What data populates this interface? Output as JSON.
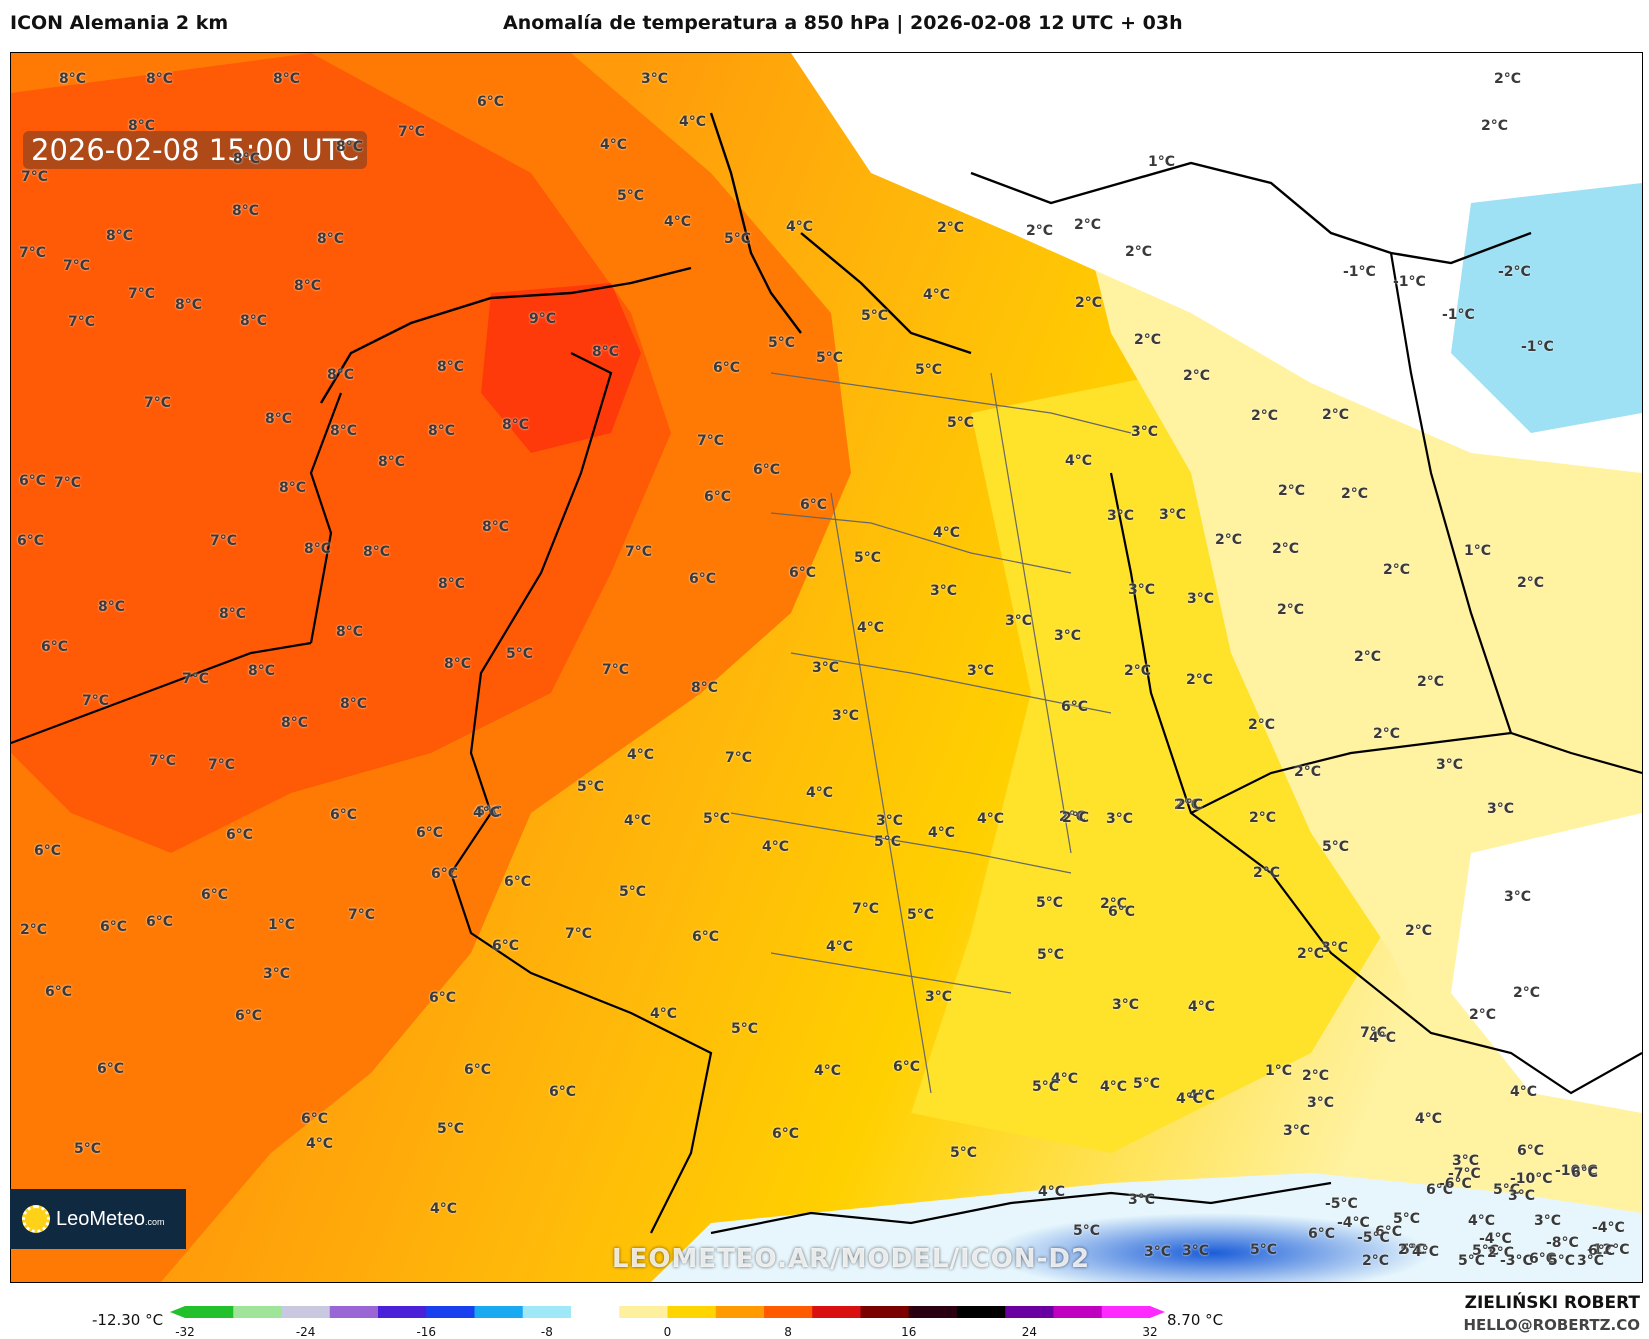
{
  "header": {
    "model": "ICON Alemania 2 km",
    "title": "Anomalía de temperatura a 850 hPa | 2026-02-08 12 UTC + 03h"
  },
  "valid_time": "2026-02-08 15:00 UTC",
  "watermark": "LEOMETEO.AR/MODEL/ICON-D2",
  "logo": {
    "name": "LeoMeteo",
    "suffix": ".com",
    "icon": "sun-logo-icon"
  },
  "colorbar": {
    "min_label": "-12.30 °C",
    "max_label": "8.70 °C",
    "ticks": [
      "-32",
      "-24",
      "-16",
      "-8",
      "0",
      "8",
      "16",
      "24",
      "32"
    ],
    "stops": [
      "#22c02a",
      "#9ee59a",
      "#c8c8e0",
      "#9a66d6",
      "#4a20d8",
      "#1840ee",
      "#1aa8f0",
      "#9ee8f8",
      "#ffffff",
      "#fff0a0",
      "#ffd400",
      "#ff9a00",
      "#ff5a00",
      "#d81010",
      "#7a0000",
      "#2a0010",
      "#000000",
      "#6a00a0",
      "#c000c0",
      "#ff2aff"
    ]
  },
  "author": {
    "name": "ZIELIŃSKI ROBERT",
    "email": "HELLO@ROBERTZ.CO"
  },
  "field_colors": {
    "warm_9": "#ff3a0a",
    "warm_8": "#ff5a05",
    "warm_7": "#ff7a05",
    "warm_6": "#ff9a0a",
    "mid_5": "#ffb80a",
    "mid_4": "#ffd000",
    "mid_3": "#ffe22a",
    "cool_2": "#fff2a0",
    "cool_1": "#fffbe6",
    "zero": "#ffffff",
    "neg_1": "#e6f6fc",
    "neg_2": "#9ee0f4",
    "alps_cold": "#1a5cd8"
  },
  "temperature_labels": [
    {
      "text": "8°C"
    },
    {
      "text": "8°C"
    },
    {
      "text": "8°C"
    },
    {
      "text": "6°C"
    },
    {
      "text": "3°C"
    },
    {
      "text": "2°C"
    },
    {
      "text": "2°C"
    },
    {
      "text": "8°C"
    },
    {
      "text": "7°C"
    },
    {
      "text": "8°C"
    },
    {
      "text": "4°C"
    },
    {
      "text": "4°C"
    },
    {
      "text": "8°C"
    },
    {
      "text": "7°C"
    },
    {
      "text": "8°C"
    },
    {
      "text": "5°C"
    },
    {
      "text": "1°C"
    },
    {
      "text": "2°C"
    },
    {
      "text": "4°C"
    },
    {
      "text": "4°C"
    },
    {
      "text": "5°C"
    },
    {
      "text": "2°C"
    },
    {
      "text": "2°C"
    },
    {
      "text": "2°C"
    },
    {
      "text": "2°C"
    },
    {
      "text": "-1°C"
    },
    {
      "text": "-1°C"
    },
    {
      "text": "-2°C"
    },
    {
      "text": "8°C"
    },
    {
      "text": "7°C"
    },
    {
      "text": "7°C"
    },
    {
      "text": "8°C"
    },
    {
      "text": "7°C"
    },
    {
      "text": "8°C"
    },
    {
      "text": "8°C"
    },
    {
      "text": "9°C"
    },
    {
      "text": "4°C"
    },
    {
      "text": "5°C"
    },
    {
      "text": "-1°C"
    },
    {
      "text": "-1°C"
    },
    {
      "text": "8°C"
    },
    {
      "text": "6°C"
    },
    {
      "text": "5°C"
    },
    {
      "text": "5°C"
    },
    {
      "text": "5°C"
    },
    {
      "text": "2°C"
    },
    {
      "text": "2°C"
    },
    {
      "text": "7°C"
    },
    {
      "text": "8°C"
    },
    {
      "text": "8°C"
    },
    {
      "text": "8°C"
    },
    {
      "text": "8°C"
    },
    {
      "text": "5°C"
    },
    {
      "text": "2°C"
    },
    {
      "text": "7°C"
    },
    {
      "text": "8°C"
    },
    {
      "text": "8°C"
    },
    {
      "text": "3°C"
    },
    {
      "text": "2°C"
    },
    {
      "text": "8°C"
    },
    {
      "text": "7°C"
    },
    {
      "text": "6°C"
    },
    {
      "text": "4°C"
    },
    {
      "text": "6°C"
    },
    {
      "text": "7°C"
    },
    {
      "text": "8°C"
    },
    {
      "text": "6°C"
    },
    {
      "text": "6°C"
    },
    {
      "text": "2°C"
    },
    {
      "text": "2°C"
    },
    {
      "text": "3°C"
    },
    {
      "text": "3°C"
    },
    {
      "text": "2°C"
    },
    {
      "text": "8°C"
    },
    {
      "text": "4°C"
    },
    {
      "text": "2°C"
    },
    {
      "text": "2°C"
    },
    {
      "text": "1°C"
    },
    {
      "text": "6°C"
    },
    {
      "text": "7°C"
    },
    {
      "text": "8°C"
    },
    {
      "text": "8°C"
    },
    {
      "text": "5°C"
    },
    {
      "text": "6°C"
    },
    {
      "text": "7°C"
    },
    {
      "text": "2°C"
    },
    {
      "text": "2°C"
    },
    {
      "text": "3°C"
    },
    {
      "text": "3°C"
    },
    {
      "text": "2°C"
    },
    {
      "text": "8°C"
    },
    {
      "text": "8°C"
    },
    {
      "text": "8°C"
    },
    {
      "text": "6°C"
    },
    {
      "text": "3°C"
    },
    {
      "text": "3°C"
    },
    {
      "text": "3°C"
    },
    {
      "text": "2°C"
    },
    {
      "text": "6°C"
    },
    {
      "text": "7°C"
    },
    {
      "text": "8°C"
    },
    {
      "text": "4°C"
    },
    {
      "text": "3°C"
    },
    {
      "text": "2°C"
    },
    {
      "text": "2°C"
    },
    {
      "text": "2°C"
    },
    {
      "text": "8°C"
    },
    {
      "text": "8°C"
    },
    {
      "text": "8°C"
    },
    {
      "text": "5°C"
    },
    {
      "text": "3°C"
    },
    {
      "text": "7°C"
    },
    {
      "text": "8°C"
    },
    {
      "text": "8°C"
    },
    {
      "text": "6°C"
    },
    {
      "text": "2°C"
    },
    {
      "text": "3°C"
    },
    {
      "text": "3°C"
    },
    {
      "text": "2°C"
    },
    {
      "text": "3°C"
    },
    {
      "text": "8°C"
    },
    {
      "text": "7°C"
    },
    {
      "text": "4°C"
    },
    {
      "text": "2°C"
    },
    {
      "text": "3°C"
    },
    {
      "text": "7°C"
    },
    {
      "text": "7°C"
    },
    {
      "text": "7°C"
    },
    {
      "text": "5°C"
    },
    {
      "text": "6°C"
    },
    {
      "text": "6°C"
    },
    {
      "text": "4°C"
    },
    {
      "text": "5°C"
    },
    {
      "text": "2°C"
    },
    {
      "text": "3°C"
    },
    {
      "text": "5°C"
    },
    {
      "text": "4°C"
    },
    {
      "text": "4°C"
    },
    {
      "text": "2°C"
    },
    {
      "text": "2°C"
    },
    {
      "text": "2°C"
    },
    {
      "text": "6°C"
    },
    {
      "text": "6°C"
    },
    {
      "text": "6°C"
    },
    {
      "text": "6°C"
    },
    {
      "text": "5°C"
    },
    {
      "text": "4°C"
    },
    {
      "text": "5°C"
    },
    {
      "text": "4°C"
    },
    {
      "text": "4°C"
    },
    {
      "text": "2°C"
    },
    {
      "text": "3°C"
    },
    {
      "text": "6°C"
    },
    {
      "text": "6°C"
    },
    {
      "text": "6°C"
    },
    {
      "text": "4°C"
    },
    {
      "text": "2°C"
    },
    {
      "text": "2°C"
    },
    {
      "text": "3°C"
    },
    {
      "text": "7°C"
    },
    {
      "text": "7°C"
    },
    {
      "text": "5°C"
    },
    {
      "text": "5°C"
    },
    {
      "text": "3°C"
    },
    {
      "text": "2°C"
    },
    {
      "text": "1°C"
    },
    {
      "text": "6°C"
    },
    {
      "text": "7°C"
    },
    {
      "text": "6°C"
    },
    {
      "text": "6°C"
    },
    {
      "text": "5°C"
    },
    {
      "text": "2°C"
    },
    {
      "text": "6°C"
    },
    {
      "text": "3°C"
    },
    {
      "text": "3°C"
    },
    {
      "text": "2°C"
    },
    {
      "text": "2°C"
    },
    {
      "text": "7°C"
    },
    {
      "text": "6°C"
    },
    {
      "text": "6°C"
    },
    {
      "text": "6°C"
    },
    {
      "text": "4°C"
    },
    {
      "text": "5°C"
    },
    {
      "text": "4°C"
    },
    {
      "text": "4°C"
    },
    {
      "text": "1°C"
    },
    {
      "text": "6°C"
    },
    {
      "text": "6°C"
    },
    {
      "text": "6°C"
    },
    {
      "text": "4°C"
    },
    {
      "text": "4°C"
    },
    {
      "text": "2°C"
    },
    {
      "text": "6°C"
    },
    {
      "text": "5°C"
    },
    {
      "text": "5°C"
    },
    {
      "text": "4°C"
    },
    {
      "text": "3°C"
    },
    {
      "text": "4°C"
    },
    {
      "text": "4°C"
    },
    {
      "text": "4°C"
    },
    {
      "text": "3°C"
    },
    {
      "text": "6°C"
    },
    {
      "text": "5°C"
    },
    {
      "text": "6°C"
    },
    {
      "text": "5°C"
    },
    {
      "text": "4°C"
    },
    {
      "text": "4°C"
    },
    {
      "text": "4°C"
    },
    {
      "text": "6°C"
    },
    {
      "text": "6°C"
    },
    {
      "text": "5°C"
    },
    {
      "text": "4°C"
    },
    {
      "text": "3°C"
    },
    {
      "text": "6°C"
    },
    {
      "text": "5°C"
    },
    {
      "text": "3°C"
    },
    {
      "text": "3°C"
    },
    {
      "text": "5°C"
    },
    {
      "text": "6°C"
    },
    {
      "text": "5°C"
    },
    {
      "text": "5°C"
    },
    {
      "text": "-10°C"
    },
    {
      "text": "-10°C"
    },
    {
      "text": "-12°C"
    },
    {
      "text": "-8°C"
    },
    {
      "text": "-7°C"
    },
    {
      "text": "-6°C"
    },
    {
      "text": "2°C"
    },
    {
      "text": "3°C"
    },
    {
      "text": "3°C"
    },
    {
      "text": "4°C"
    },
    {
      "text": "5°C"
    },
    {
      "text": "6°C"
    },
    {
      "text": "-4°C"
    },
    {
      "text": "-5°C"
    },
    {
      "text": "-5°C"
    },
    {
      "text": "-4°C"
    },
    {
      "text": "5°C"
    },
    {
      "text": "4°C"
    },
    {
      "text": "5°C"
    },
    {
      "text": "6°C"
    },
    {
      "text": "3°C"
    },
    {
      "text": "2°C"
    },
    {
      "text": "-3°C"
    },
    {
      "text": "-4°C"
    },
    {
      "text": "6°C"
    },
    {
      "text": "2°C"
    },
    {
      "text": "5°C"
    },
    {
      "text": "3°C"
    }
  ]
}
